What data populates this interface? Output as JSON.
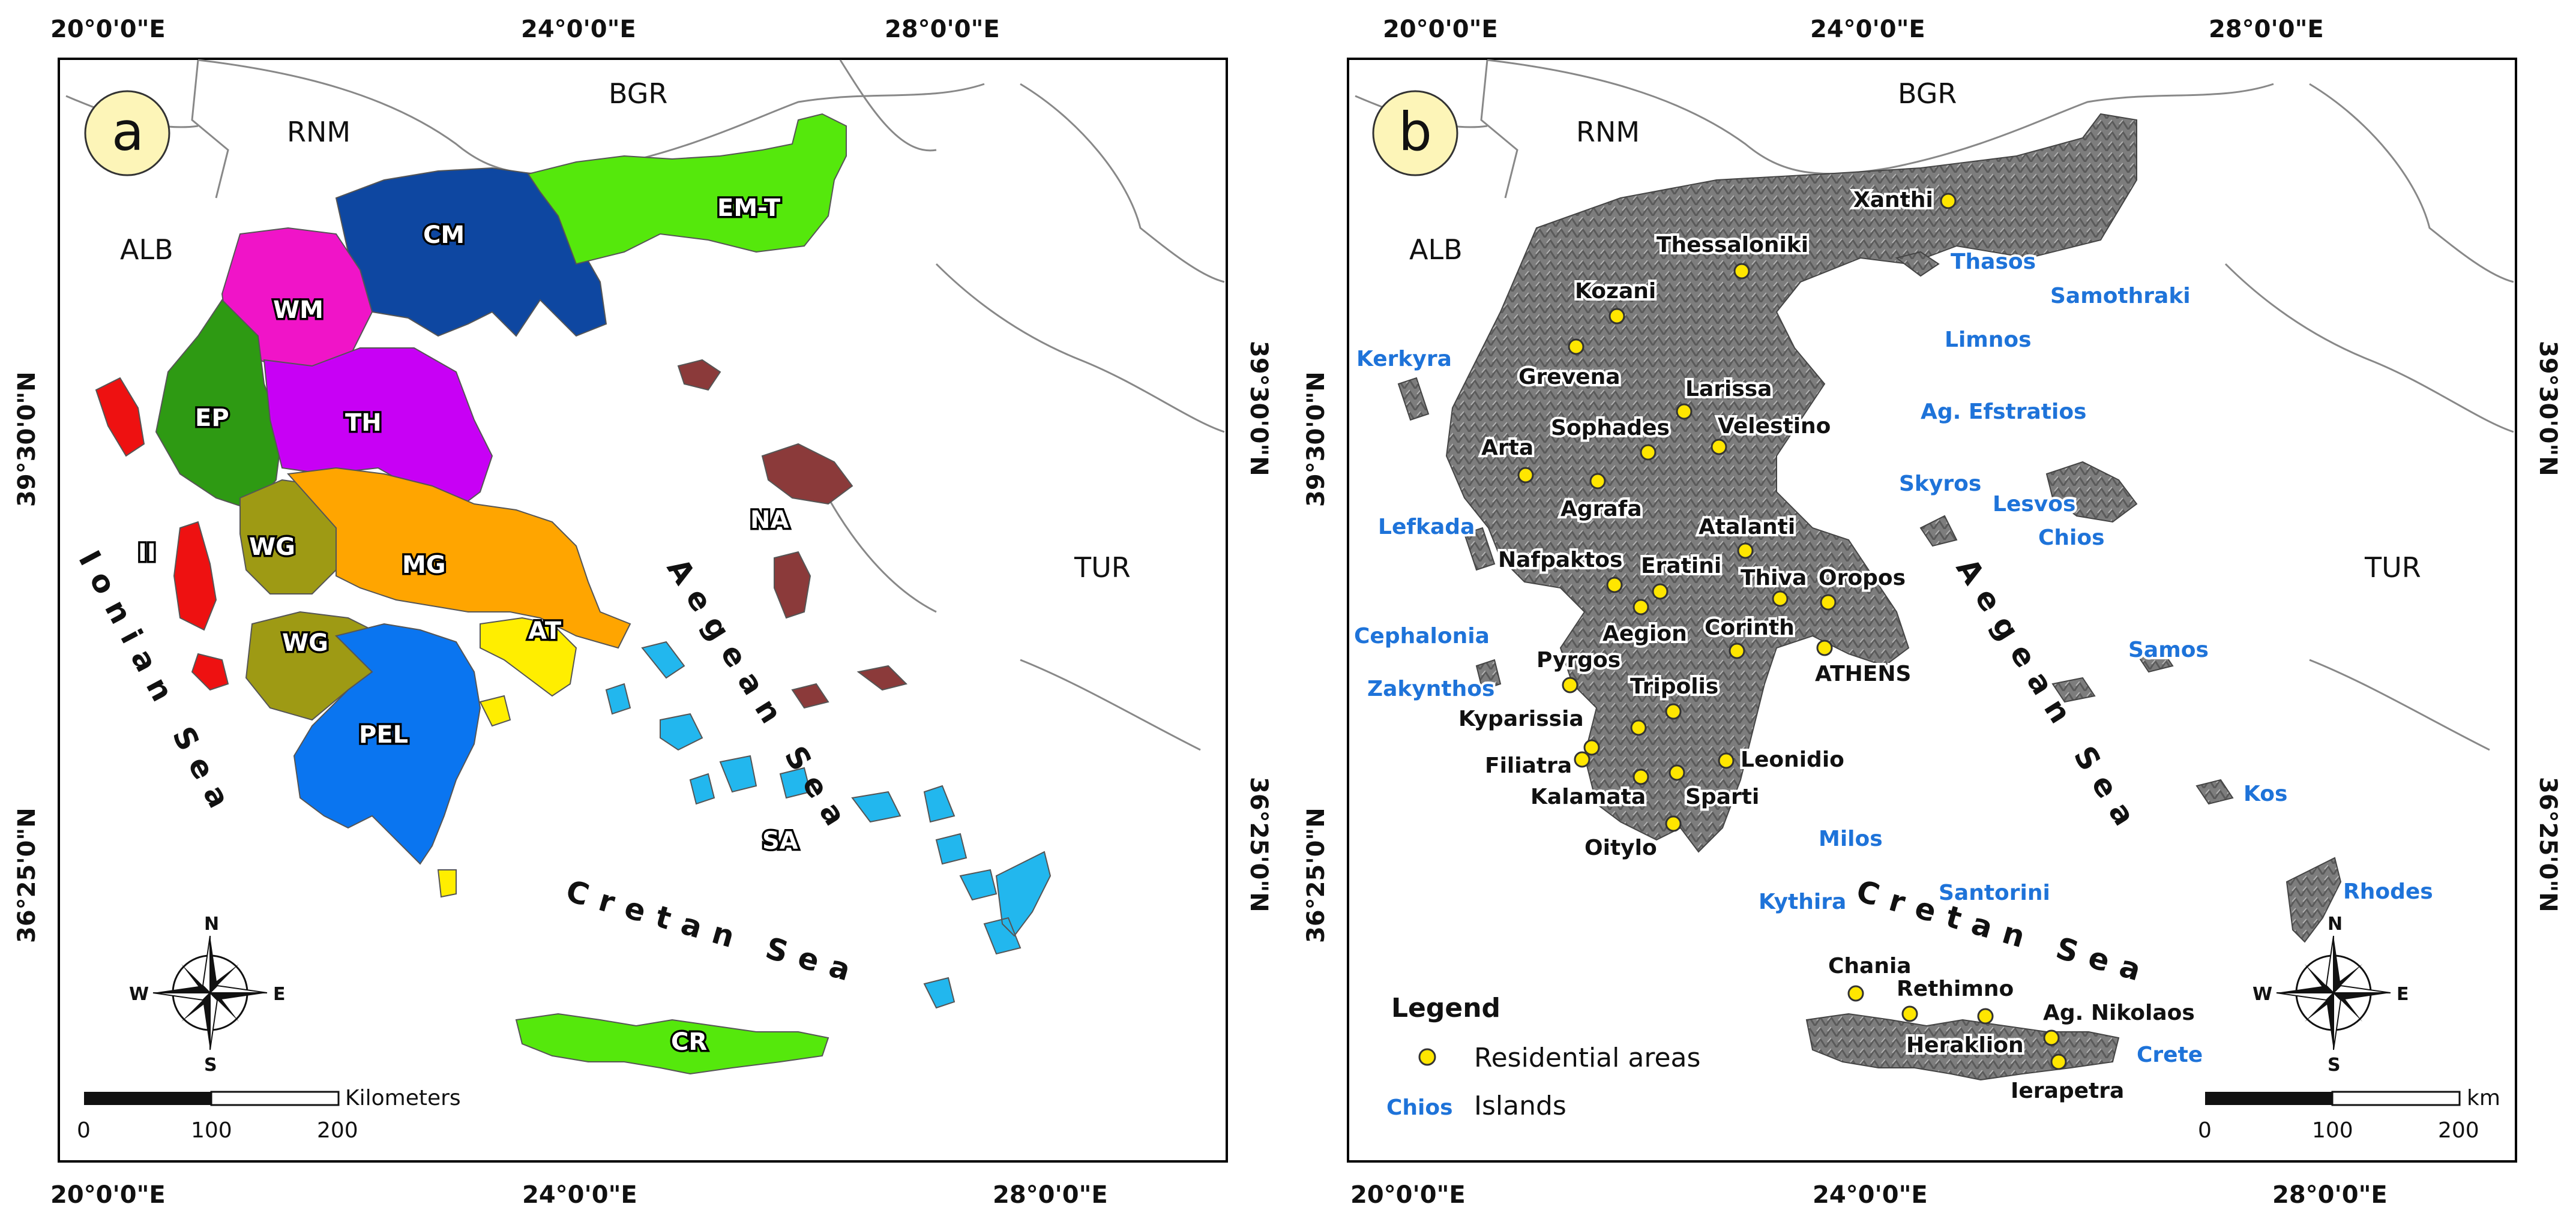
{
  "map_a": {
    "panel_label": "a",
    "countries": [
      "ALB",
      "RNM",
      "BGR",
      "TUR"
    ],
    "regions": [
      {
        "code": "CM",
        "color": "#0e47a1"
      },
      {
        "code": "EM-T",
        "color": "#55e80c"
      },
      {
        "code": "WM",
        "color": "#f014c8"
      },
      {
        "code": "EP",
        "color": "#2e9a13"
      },
      {
        "code": "TH",
        "color": "#c800f5"
      },
      {
        "code": "II",
        "color": "#ee1111"
      },
      {
        "code": "WG",
        "color": "#9e9a14"
      },
      {
        "code": "MG",
        "color": "#ffa500"
      },
      {
        "code": "AT",
        "color": "#ffee00"
      },
      {
        "code": "PEL",
        "color": "#0a75f0"
      },
      {
        "code": "NA",
        "color": "#8b3a3a"
      },
      {
        "code": "SA",
        "color": "#22b7ee"
      },
      {
        "code": "CR",
        "color": "#55e80c"
      }
    ],
    "seas": [
      "Ionian Sea",
      "Aegean Sea",
      "Cretan Sea"
    ],
    "scale": {
      "unit": "Kilometers",
      "ticks": [
        "0",
        "100",
        "200"
      ]
    }
  },
  "map_b": {
    "panel_label": "b",
    "countries": [
      "ALB",
      "RNM",
      "BGR",
      "TUR"
    ],
    "seas": [
      "Aegean Sea",
      "Cretan Sea"
    ],
    "cities": [
      "Xanthi",
      "Thessaloniki",
      "Kozani",
      "Grevena",
      "Larissa",
      "Sophades",
      "Velestino",
      "Arta",
      "Agrafa",
      "Atalanti",
      "Nafpaktos",
      "Eratini",
      "Thiva",
      "Oropos",
      "Aegion",
      "Corinth",
      "ATHENS",
      "Pyrgos",
      "Tripolis",
      "Kyparissia",
      "Filiatra",
      "Leonidio",
      "Kalamata",
      "Sparti",
      "Oitylo",
      "Chania",
      "Rethimno",
      "Ag. Nikolaos",
      "Heraklion",
      "Ierapetra"
    ],
    "islands": [
      "Thasos",
      "Samothraki",
      "Kerkyra",
      "Limnos",
      "Ag. Efstratios",
      "Skyros",
      "Lesvos",
      "Lefkada",
      "Chios",
      "Cephalonia",
      "Samos",
      "Zakynthos",
      "Milos",
      "Kos",
      "Santorini",
      "Kythira",
      "Rhodes",
      "Crete"
    ],
    "legend": {
      "title": "Legend",
      "residential": "Residential areas",
      "island_sample": "Chios",
      "islands": "Islands"
    },
    "scale": {
      "unit": "km",
      "ticks": [
        "0",
        "100",
        "200"
      ]
    }
  },
  "coords": {
    "lon_top": [
      "20°0'0\"E",
      "24°0'0\"E",
      "28°0'0\"E"
    ],
    "lon_bottom": [
      "20°0'0\"E",
      "24°0'0\"E",
      "28°0'0\"E"
    ],
    "lat": [
      "39°30'0\"N",
      "36°25'0\"N"
    ]
  },
  "compass": [
    "N",
    "S",
    "W",
    "E"
  ],
  "colors": {
    "frame": "#000000",
    "land": "#ffffff",
    "relief": "#7a7a7a",
    "relief_dark": "#4a4a4a",
    "marker": "#ffe600",
    "island_text": "#1e73d9",
    "panel_circle": "#fdf5b8"
  }
}
